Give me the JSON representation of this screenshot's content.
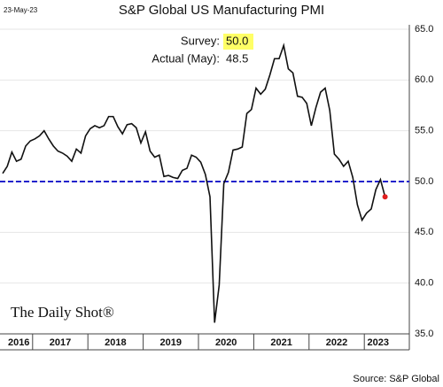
{
  "chart_data": {
    "type": "line",
    "title": "S&P Global US Manufacturing PMI",
    "date": "23-May-23",
    "source": "Source: S&P Global",
    "watermark": "The Daily Shot®",
    "survey": {
      "text": "Survey:",
      "value": 50,
      "label": "50.0"
    },
    "actual": {
      "text": "Actual (May):",
      "label": "48.5"
    },
    "categories": [
      null,
      null,
      null,
      "2016",
      null,
      null,
      null,
      null,
      null,
      null,
      null,
      null,
      "2017",
      null,
      null,
      null,
      null,
      null,
      null,
      null,
      null,
      null,
      null,
      null,
      "2018",
      null,
      null,
      null,
      null,
      null,
      null,
      null,
      null,
      null,
      null,
      null,
      "2019",
      null,
      null,
      null,
      null,
      null,
      null,
      null,
      null,
      null,
      null,
      null,
      "2020",
      null,
      null,
      null,
      null,
      null,
      null,
      null,
      null,
      null,
      null,
      null,
      "2021",
      null,
      null,
      null,
      null,
      null,
      null,
      null,
      null,
      null,
      null,
      null,
      "2022",
      null,
      null,
      null,
      null,
      null,
      null,
      null,
      null,
      "2023",
      null,
      null
    ],
    "series": [
      {
        "name": "PMI",
        "color": "#111111",
        "last_point_color": "#e02020",
        "values": [
          50.8,
          51.5,
          52.9,
          52.0,
          52.2,
          53.5,
          54.0,
          54.2,
          54.5,
          55.0,
          54.2,
          53.5,
          53.0,
          52.8,
          52.5,
          52.0,
          53.2,
          52.8,
          54.5,
          55.2,
          55.5,
          55.3,
          55.5,
          56.4,
          56.4,
          55.4,
          54.7,
          55.6,
          55.7,
          55.3,
          53.8,
          54.9,
          53.0,
          52.4,
          52.6,
          50.5,
          50.6,
          50.4,
          50.3,
          51.1,
          51.3,
          52.6,
          52.4,
          51.9,
          50.7,
          48.5,
          36.1,
          39.8,
          49.8,
          50.9,
          53.1,
          53.2,
          53.4,
          56.7,
          57.1,
          59.2,
          58.6,
          59.1,
          60.5,
          62.1,
          62.1,
          63.4,
          61.1,
          60.7,
          58.4,
          58.3,
          57.7,
          55.5,
          57.3,
          58.8,
          59.2,
          57.0,
          52.7,
          52.2,
          51.5,
          52.0,
          50.4,
          47.7,
          46.2,
          46.9,
          47.3,
          49.2,
          50.2,
          48.5
        ]
      }
    ],
    "ylim": [
      35,
      65
    ],
    "yticks": [
      {
        "value": 35,
        "label": "35.0"
      },
      {
        "value": 40,
        "label": "40.0"
      },
      {
        "value": 45,
        "label": "45.0"
      },
      {
        "value": 50,
        "label": "50.0"
      },
      {
        "value": 55,
        "label": "55.0"
      },
      {
        "value": 60,
        "label": "60.0"
      },
      {
        "value": 65,
        "label": "65.0"
      }
    ],
    "grid": true
  }
}
